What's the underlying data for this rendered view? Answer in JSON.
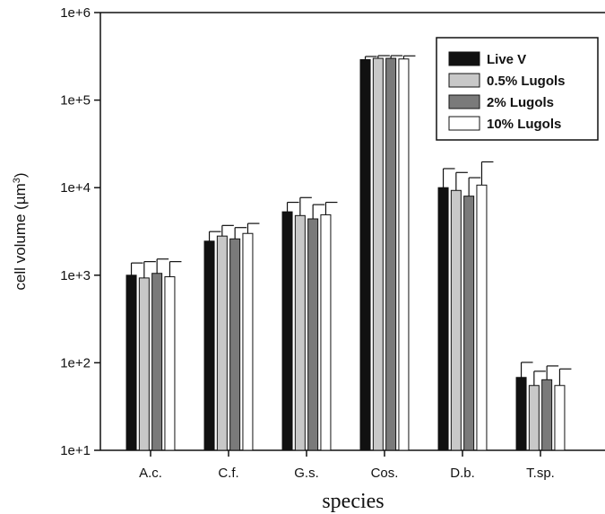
{
  "chart_data": {
    "type": "bar",
    "title": "",
    "xlabel": "species",
    "ylabel": "cell volume (µm",
    "ylabel_sup": "3",
    "ylabel_close": ")",
    "yscale": "log",
    "ylim": [
      10,
      1000000
    ],
    "yticks": [
      10,
      100,
      1000,
      10000,
      100000,
      1000000
    ],
    "ytick_labels": [
      "1e+1",
      "1e+2",
      "1e+3",
      "1e+4",
      "1e+5",
      "1e+6"
    ],
    "grid": false,
    "legend_position": "top-right",
    "categories": [
      "A.c.",
      "C.f.",
      "G.s.",
      "Cos.",
      "D.b.",
      "T.sp."
    ],
    "series": [
      {
        "name": "Live V",
        "fill": "#111111",
        "values": [
          1000,
          2450,
          5300,
          290000,
          10000,
          68
        ],
        "error": [
          380,
          700,
          1500,
          25000,
          6500,
          33
        ]
      },
      {
        "name": "0.5% Lugols",
        "fill": "#c8c8c8",
        "values": [
          930,
          2800,
          4800,
          300000,
          9300,
          55
        ],
        "error": [
          500,
          900,
          2900,
          22000,
          5600,
          25
        ]
      },
      {
        "name": "2% Lugols",
        "fill": "#7a7a7a",
        "values": [
          1050,
          2600,
          4400,
          300000,
          8000,
          64
        ],
        "error": [
          480,
          900,
          2000,
          22000,
          5000,
          28
        ]
      },
      {
        "name": "10% Lugols",
        "fill": "#ffffff",
        "values": [
          960,
          3000,
          4900,
          295000,
          10700,
          55
        ],
        "error": [
          470,
          900,
          1900,
          25000,
          9000,
          30
        ]
      }
    ]
  }
}
